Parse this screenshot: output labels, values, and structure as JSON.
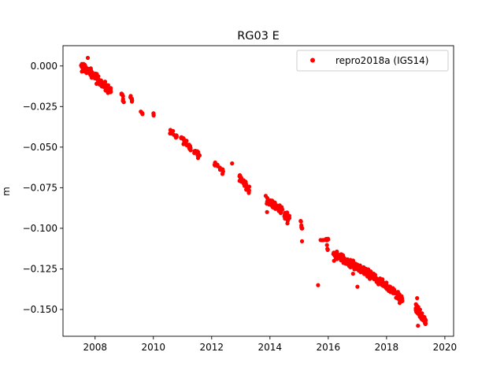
{
  "chart_data": {
    "type": "scatter",
    "title": "RG03 E",
    "xlabel": "",
    "ylabel": "m",
    "xlim": [
      2006.9,
      2020.3
    ],
    "ylim": [
      -0.1665,
      0.0125
    ],
    "xticks": [
      2008,
      2010,
      2012,
      2014,
      2016,
      2018,
      2020
    ],
    "yticks": [
      0.0,
      -0.025,
      -0.05,
      -0.075,
      -0.1,
      -0.125,
      -0.15
    ],
    "ytick_labels": [
      "0.000",
      "−0.025",
      "−0.050",
      "−0.075",
      "−0.100",
      "−0.125",
      "−0.150"
    ],
    "xtick_labels": [
      "2008",
      "2010",
      "2012",
      "2014",
      "2016",
      "2018",
      "2020"
    ],
    "grid": false,
    "legend_position": "top-right",
    "series": [
      {
        "name": "repro2018a (IGS14)",
        "color": "#ff0000",
        "marker": "circle",
        "segments": [
          {
            "x0": 2007.5,
            "x1": 2008.0,
            "y0": 0.0,
            "y1": -0.006,
            "n": 70,
            "spread": 0.0025
          },
          {
            "x0": 2008.0,
            "x1": 2008.55,
            "y0": -0.006,
            "y1": -0.016,
            "n": 55,
            "spread": 0.0025
          },
          {
            "x0": 2008.9,
            "x1": 2009.0,
            "y0": -0.017,
            "y1": -0.022,
            "n": 8,
            "spread": 0.002
          },
          {
            "x0": 2009.2,
            "x1": 2009.28,
            "y0": -0.019,
            "y1": -0.022,
            "n": 6,
            "spread": 0.0015
          },
          {
            "x0": 2009.55,
            "x1": 2009.65,
            "y0": -0.028,
            "y1": -0.029,
            "n": 4,
            "spread": 0.001
          },
          {
            "x0": 2010.0,
            "x1": 2010.02,
            "y0": -0.029,
            "y1": -0.031,
            "n": 3,
            "spread": 0.001
          },
          {
            "x0": 2010.55,
            "x1": 2010.8,
            "y0": -0.041,
            "y1": -0.044,
            "n": 14,
            "spread": 0.002
          },
          {
            "x0": 2010.95,
            "x1": 2011.3,
            "y0": -0.043,
            "y1": -0.052,
            "n": 26,
            "spread": 0.0025
          },
          {
            "x0": 2011.4,
            "x1": 2011.65,
            "y0": -0.052,
            "y1": -0.056,
            "n": 12,
            "spread": 0.002
          },
          {
            "x0": 2012.05,
            "x1": 2012.4,
            "y0": -0.059,
            "y1": -0.065,
            "n": 16,
            "spread": 0.0018
          },
          {
            "x0": 2012.95,
            "x1": 2013.3,
            "y0": -0.068,
            "y1": -0.077,
            "n": 30,
            "spread": 0.0025
          },
          {
            "x0": 2013.85,
            "x1": 2014.35,
            "y0": -0.082,
            "y1": -0.088,
            "n": 40,
            "spread": 0.0025
          },
          {
            "x0": 2014.3,
            "x1": 2014.7,
            "y0": -0.088,
            "y1": -0.094,
            "n": 30,
            "spread": 0.0022
          },
          {
            "x0": 2015.05,
            "x1": 2015.12,
            "y0": -0.095,
            "y1": -0.102,
            "n": 8,
            "spread": 0.0015
          },
          {
            "x0": 2015.7,
            "x1": 2016.0,
            "y0": -0.107,
            "y1": -0.107,
            "n": 10,
            "spread": 0.0006
          },
          {
            "x0": 2015.95,
            "x1": 2016.0,
            "y0": -0.11,
            "y1": -0.115,
            "n": 4,
            "spread": 0.001
          },
          {
            "x0": 2016.15,
            "x1": 2017.0,
            "y0": -0.115,
            "y1": -0.124,
            "n": 110,
            "spread": 0.0022
          },
          {
            "x0": 2017.0,
            "x1": 2017.8,
            "y0": -0.124,
            "y1": -0.133,
            "n": 110,
            "spread": 0.0022
          },
          {
            "x0": 2017.8,
            "x1": 2018.55,
            "y0": -0.133,
            "y1": -0.144,
            "n": 95,
            "spread": 0.0022
          },
          {
            "x0": 2019.0,
            "x1": 2019.35,
            "y0": -0.149,
            "y1": -0.158,
            "n": 70,
            "spread": 0.0028
          }
        ],
        "outliers": [
          {
            "x": 2007.75,
            "y": 0.005
          },
          {
            "x": 2008.05,
            "y": -0.011
          },
          {
            "x": 2014.6,
            "y": -0.097
          },
          {
            "x": 2013.9,
            "y": -0.09
          },
          {
            "x": 2015.65,
            "y": -0.135
          },
          {
            "x": 2016.2,
            "y": -0.12
          },
          {
            "x": 2016.85,
            "y": -0.128
          },
          {
            "x": 2017.0,
            "y": -0.136
          },
          {
            "x": 2019.05,
            "y": -0.143
          },
          {
            "x": 2019.08,
            "y": -0.16
          },
          {
            "x": 2015.1,
            "y": -0.108
          },
          {
            "x": 2012.7,
            "y": -0.06
          },
          {
            "x": 2018.45,
            "y": -0.146
          }
        ]
      }
    ]
  }
}
